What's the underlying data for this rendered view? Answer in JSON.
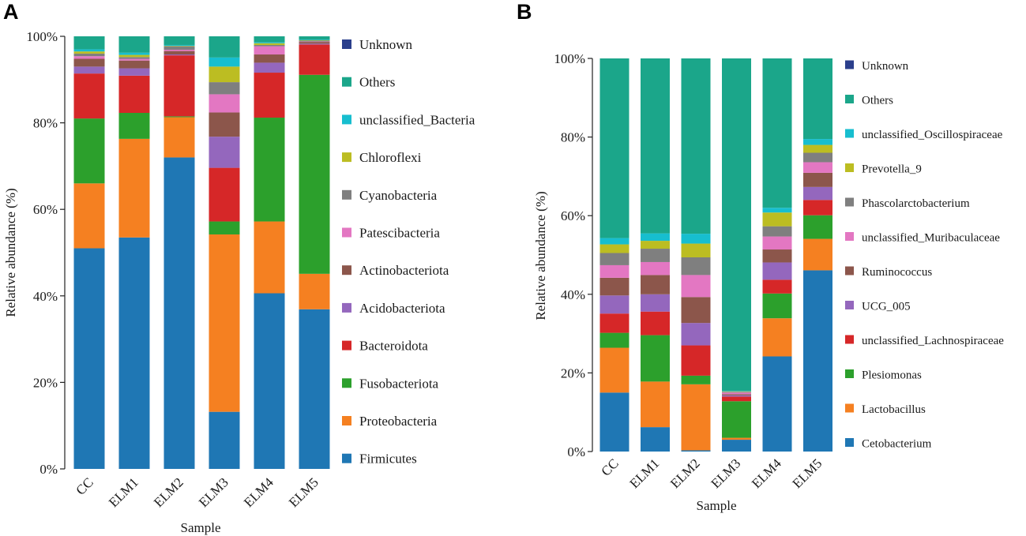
{
  "chart_data": [
    {
      "panel": "A",
      "type": "bar",
      "stacked": true,
      "xlabel": "Sample",
      "ylabel": "Relative abundance (%)",
      "ylim": [
        0,
        100
      ],
      "yticks": [
        "0%",
        "20%",
        "40%",
        "60%",
        "80%",
        "100%"
      ],
      "categories": [
        "CC",
        "ELM1",
        "ELM2",
        "ELM3",
        "ELM4",
        "ELM5"
      ],
      "series": [
        {
          "name": "Firmicutes",
          "color": "#1f77b4",
          "values": [
            51,
            53.5,
            72,
            13.2,
            40.6,
            36.9
          ]
        },
        {
          "name": "Proteobacteria",
          "color": "#f58021",
          "values": [
            15,
            22.8,
            9.3,
            41,
            16.6,
            8.2
          ]
        },
        {
          "name": "Fusobacteriota",
          "color": "#2ca02c",
          "values": [
            15,
            6,
            0.2,
            3,
            24,
            46
          ]
        },
        {
          "name": "Bacteroidota",
          "color": "#d62728",
          "values": [
            10.4,
            8.6,
            14.1,
            12.4,
            10.4,
            7
          ]
        },
        {
          "name": "Acidobacteriota",
          "color": "#9467bd",
          "values": [
            1.6,
            1.7,
            0.2,
            7.2,
            2.3,
            0.2
          ]
        },
        {
          "name": "Actinobacteriota",
          "color": "#8c564b",
          "values": [
            1.8,
            1.8,
            0.8,
            5.6,
            1.9,
            0.4
          ]
        },
        {
          "name": "Patescibacteria",
          "color": "#e377c2",
          "values": [
            0.6,
            0.4,
            0.3,
            4.2,
            1.9,
            0.1
          ]
        },
        {
          "name": "Cyanobacteria",
          "color": "#7f7f7f",
          "values": [
            0.6,
            0.4,
            0.8,
            2.8,
            0.3,
            0.2
          ]
        },
        {
          "name": "Chloroflexi",
          "color": "#bcbd22",
          "values": [
            0.5,
            0.5,
            0.1,
            3.6,
            0.4,
            0.1
          ]
        },
        {
          "name": "unclassified_Bacteria",
          "color": "#17becf",
          "values": [
            0.5,
            0.5,
            0.2,
            2.1,
            0.2,
            0.1
          ]
        },
        {
          "name": "Others",
          "color": "#1ba68a",
          "values": [
            3,
            3.8,
            2,
            4.9,
            1.4,
            0.8
          ]
        },
        {
          "name": "Unknown",
          "color": "#2b3f8c",
          "values": [
            0,
            0,
            0,
            0,
            0,
            0
          ]
        }
      ]
    },
    {
      "panel": "B",
      "type": "bar",
      "stacked": true,
      "xlabel": "Sample",
      "ylabel": "Relative abundance (%)",
      "ylim": [
        0,
        100
      ],
      "yticks": [
        "0%",
        "20%",
        "40%",
        "60%",
        "80%",
        "100%"
      ],
      "categories": [
        "CC",
        "ELM1",
        "ELM2",
        "ELM3",
        "ELM4",
        "ELM5"
      ],
      "series": [
        {
          "name": "Cetobacterium",
          "color": "#1f77b4",
          "values": [
            15,
            6.2,
            0.3,
            3,
            24.2,
            46.1
          ]
        },
        {
          "name": "Lactobacillus",
          "color": "#f58021",
          "values": [
            11.4,
            11.6,
            16.8,
            0.5,
            9.7,
            8
          ]
        },
        {
          "name": "Plesiomonas",
          "color": "#2ca02c",
          "values": [
            3.8,
            11.8,
            2.2,
            9.3,
            6.3,
            6
          ]
        },
        {
          "name": "unclassified_Lachnospiraceae",
          "color": "#d62728",
          "values": [
            4.9,
            6,
            7.7,
            1.2,
            3.5,
            3.9
          ]
        },
        {
          "name": "UCG_005",
          "color": "#9467bd",
          "values": [
            4.6,
            4.4,
            5.7,
            0.3,
            4.4,
            3.3
          ]
        },
        {
          "name": "Ruminococcus",
          "color": "#8c564b",
          "values": [
            4.5,
            4.9,
            6.6,
            0.3,
            3.3,
            3.6
          ]
        },
        {
          "name": "unclassified_Muribaculaceae",
          "color": "#e377c2",
          "values": [
            3.2,
            3.3,
            5.6,
            0.4,
            3.3,
            2.7
          ]
        },
        {
          "name": "Phascolarctobacterium",
          "color": "#7f7f7f",
          "values": [
            3.1,
            3.4,
            4.5,
            0.2,
            2.6,
            2.4
          ]
        },
        {
          "name": "Prevotella_9",
          "color": "#bcbd22",
          "values": [
            2.2,
            2,
            3.5,
            0.1,
            3.5,
            2
          ]
        },
        {
          "name": "unclassified_Oscillospiraceae",
          "color": "#17becf",
          "values": [
            1.6,
            1.9,
            2.5,
            0.1,
            1.2,
            1.5
          ]
        },
        {
          "name": "Others",
          "color": "#1ba68a",
          "values": [
            45.7,
            44.5,
            44.6,
            84.6,
            38,
            20.5
          ]
        },
        {
          "name": "Unknown",
          "color": "#2b3f8c",
          "values": [
            0,
            0,
            0,
            0,
            0,
            0
          ]
        }
      ]
    }
  ]
}
